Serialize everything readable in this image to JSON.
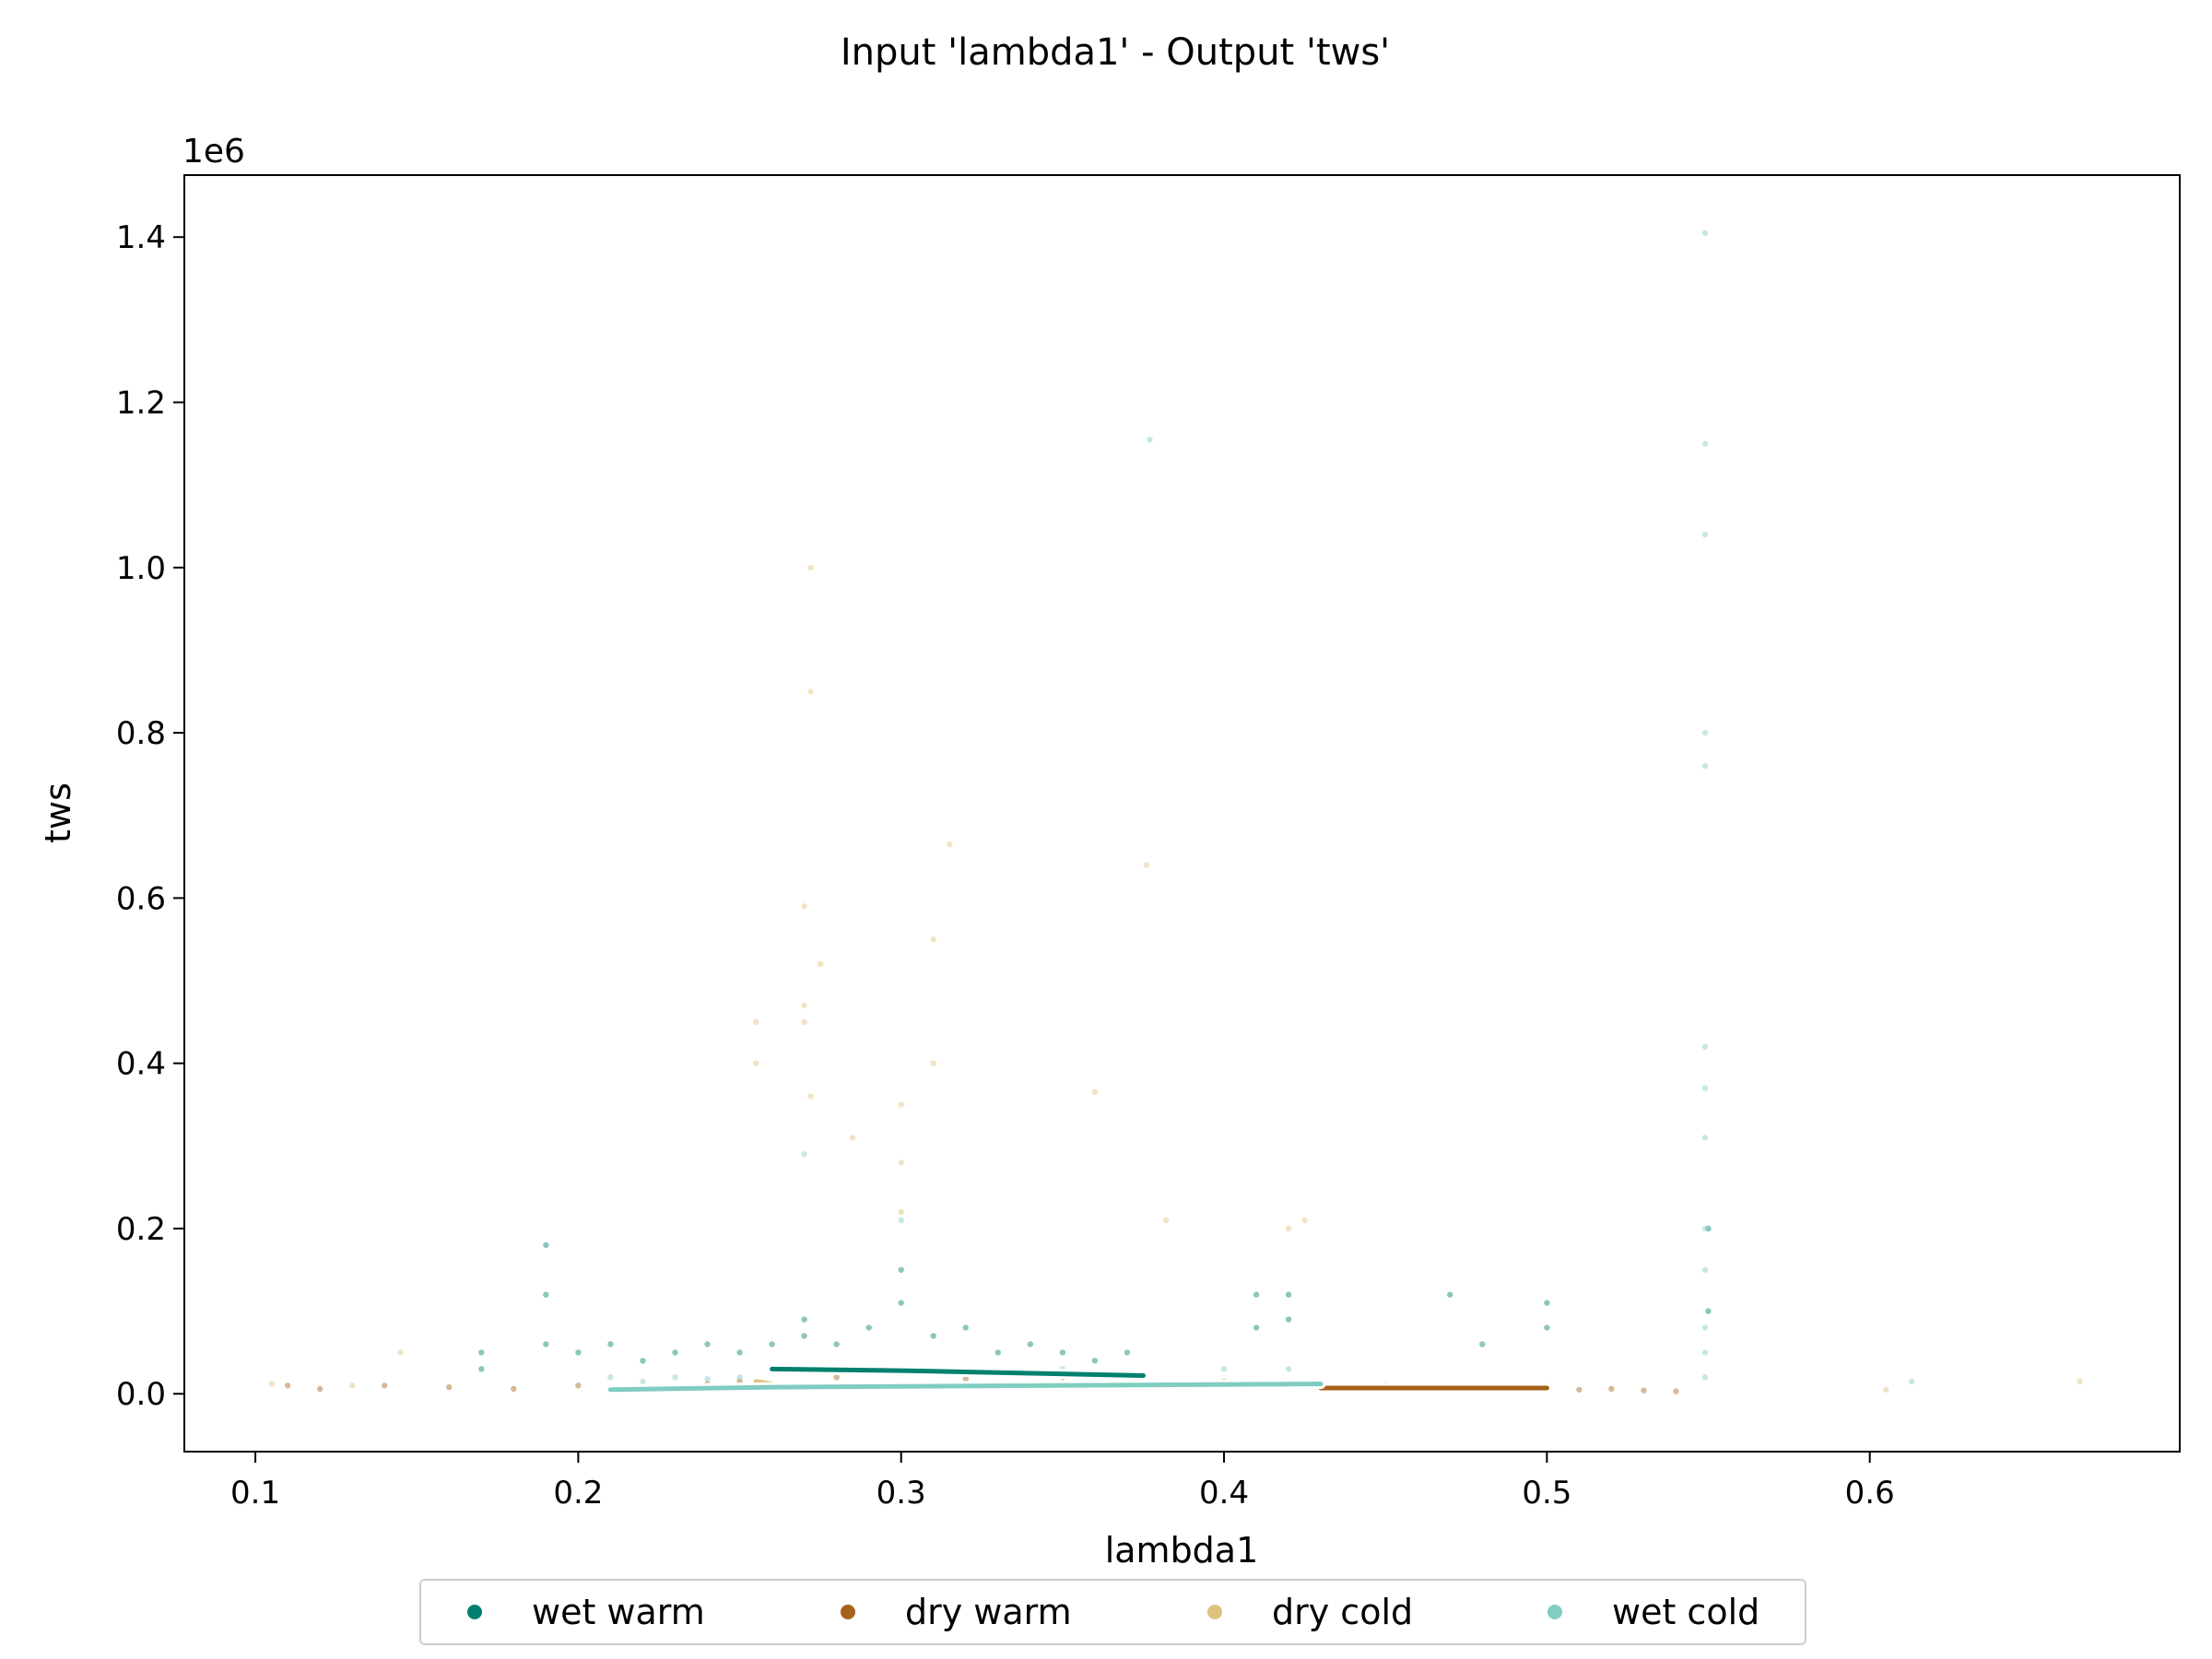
{
  "chart_data": {
    "type": "scatter",
    "title": "Input 'lambda1' - Output 'tws'",
    "xlabel": "lambda1",
    "ylabel": "tws",
    "y_offset_label": "1e6",
    "xlim": [
      0.078,
      0.696
    ],
    "ylim": [
      -0.07,
      1.475
    ],
    "x_ticks": [
      0.1,
      0.2,
      0.3,
      0.4,
      0.5,
      0.6
    ],
    "x_tick_labels": [
      "0.1",
      "0.2",
      "0.3",
      "0.4",
      "0.5",
      "0.6"
    ],
    "y_ticks": [
      0.0,
      0.2,
      0.4,
      0.6,
      0.8,
      1.0,
      1.2,
      1.4
    ],
    "y_tick_labels": [
      "0.0",
      "0.2",
      "0.4",
      "0.6",
      "0.8",
      "1.0",
      "1.2",
      "1.4"
    ],
    "grid": false,
    "legend_position": "bottom-center",
    "series": [
      {
        "name": "wet warm",
        "color": "#01806e",
        "points": [
          [
            0.17,
            0.05
          ],
          [
            0.17,
            0.03
          ],
          [
            0.19,
            0.18
          ],
          [
            0.19,
            0.12
          ],
          [
            0.19,
            0.06
          ],
          [
            0.2,
            0.05
          ],
          [
            0.21,
            0.06
          ],
          [
            0.22,
            0.04
          ],
          [
            0.23,
            0.05
          ],
          [
            0.24,
            0.06
          ],
          [
            0.25,
            0.05
          ],
          [
            0.26,
            0.06
          ],
          [
            0.27,
            0.09
          ],
          [
            0.27,
            0.07
          ],
          [
            0.28,
            0.06
          ],
          [
            0.29,
            0.08
          ],
          [
            0.3,
            0.11
          ],
          [
            0.3,
            0.15
          ],
          [
            0.31,
            0.07
          ],
          [
            0.32,
            0.08
          ],
          [
            0.33,
            0.05
          ],
          [
            0.34,
            0.06
          ],
          [
            0.35,
            0.05
          ],
          [
            0.36,
            0.04
          ],
          [
            0.37,
            0.05
          ],
          [
            0.41,
            0.12
          ],
          [
            0.41,
            0.08
          ],
          [
            0.42,
            0.09
          ],
          [
            0.42,
            0.12
          ],
          [
            0.47,
            0.12
          ],
          [
            0.48,
            0.06
          ],
          [
            0.5,
            0.11
          ],
          [
            0.5,
            0.08
          ],
          [
            0.55,
            0.2
          ],
          [
            0.55,
            0.1
          ]
        ],
        "trend": [
          [
            0.26,
            0.03
          ],
          [
            0.3,
            0.028
          ],
          [
            0.375,
            0.022
          ]
        ]
      },
      {
        "name": "dry warm",
        "color": "#a6611a",
        "points": [
          [
            0.11,
            0.01
          ],
          [
            0.12,
            0.006
          ],
          [
            0.14,
            0.01
          ],
          [
            0.16,
            0.008
          ],
          [
            0.18,
            0.006
          ],
          [
            0.2,
            0.01
          ],
          [
            0.22,
            0.008
          ],
          [
            0.24,
            0.012
          ],
          [
            0.25,
            0.015
          ],
          [
            0.28,
            0.02
          ],
          [
            0.3,
            0.025
          ],
          [
            0.32,
            0.018
          ],
          [
            0.35,
            0.02
          ],
          [
            0.4,
            0.015
          ],
          [
            0.45,
            0.01
          ],
          [
            0.48,
            0.008
          ],
          [
            0.5,
            0.006
          ],
          [
            0.51,
            0.005
          ],
          [
            0.52,
            0.006
          ],
          [
            0.53,
            0.004
          ],
          [
            0.54,
            0.003
          ]
        ],
        "trend": [
          [
            0.43,
            0.007
          ],
          [
            0.5,
            0.007
          ]
        ]
      },
      {
        "name": "dry cold",
        "color": "#dfc27d",
        "points": [
          [
            0.105,
            0.012
          ],
          [
            0.13,
            0.01
          ],
          [
            0.145,
            0.05
          ],
          [
            0.255,
            0.45
          ],
          [
            0.255,
            0.4
          ],
          [
            0.27,
            0.59
          ],
          [
            0.27,
            0.47
          ],
          [
            0.27,
            0.45
          ],
          [
            0.272,
            1.0
          ],
          [
            0.272,
            0.85
          ],
          [
            0.272,
            0.36
          ],
          [
            0.275,
            0.52
          ],
          [
            0.285,
            0.31
          ],
          [
            0.3,
            0.35
          ],
          [
            0.3,
            0.28
          ],
          [
            0.3,
            0.22
          ],
          [
            0.31,
            0.55
          ],
          [
            0.31,
            0.4
          ],
          [
            0.315,
            0.665
          ],
          [
            0.36,
            0.365
          ],
          [
            0.376,
            0.64
          ],
          [
            0.382,
            0.21
          ],
          [
            0.42,
            0.2
          ],
          [
            0.425,
            0.21
          ],
          [
            0.605,
            0.005
          ],
          [
            0.665,
            0.015
          ]
        ],
        "trend": [
          [
            0.255,
            0.015
          ],
          [
            0.26,
            0.012
          ]
        ]
      },
      {
        "name": "wet cold",
        "color": "#80cdc1",
        "points": [
          [
            0.21,
            0.02
          ],
          [
            0.22,
            0.015
          ],
          [
            0.23,
            0.02
          ],
          [
            0.24,
            0.018
          ],
          [
            0.25,
            0.02
          ],
          [
            0.27,
            0.29
          ],
          [
            0.3,
            0.21
          ],
          [
            0.35,
            0.03
          ],
          [
            0.377,
            1.155
          ],
          [
            0.4,
            0.03
          ],
          [
            0.42,
            0.03
          ],
          [
            0.45,
            0.01
          ],
          [
            0.5,
            0.01
          ],
          [
            0.549,
            1.405
          ],
          [
            0.549,
            1.15
          ],
          [
            0.549,
            1.04
          ],
          [
            0.549,
            0.8
          ],
          [
            0.549,
            0.76
          ],
          [
            0.549,
            0.42
          ],
          [
            0.549,
            0.37
          ],
          [
            0.549,
            0.31
          ],
          [
            0.549,
            0.2
          ],
          [
            0.549,
            0.15
          ],
          [
            0.549,
            0.08
          ],
          [
            0.549,
            0.05
          ],
          [
            0.549,
            0.02
          ],
          [
            0.613,
            0.015
          ]
        ],
        "trend": [
          [
            0.21,
            0.005
          ],
          [
            0.26,
            0.008
          ],
          [
            0.3,
            0.009
          ],
          [
            0.43,
            0.012
          ]
        ]
      }
    ]
  }
}
